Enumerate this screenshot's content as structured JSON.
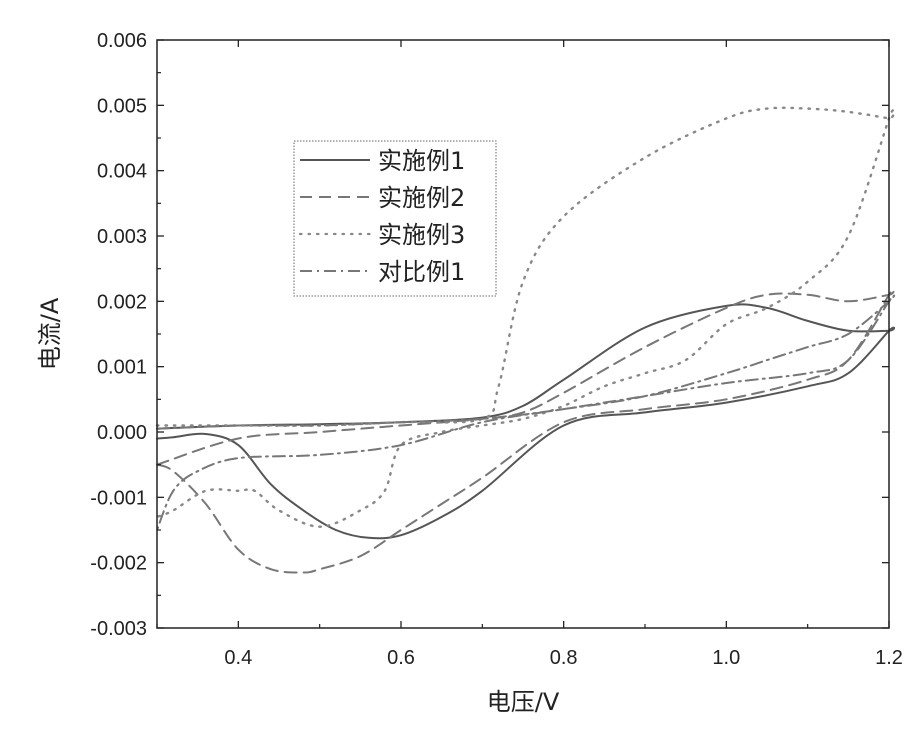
{
  "chart_data": {
    "type": "line",
    "title": "",
    "xlabel": "电压/V",
    "ylabel": "电流/A",
    "xlim": [
      0.3,
      1.2
    ],
    "ylim": [
      -0.003,
      0.006
    ],
    "x_ticks": [
      0.4,
      0.6,
      0.8,
      1.0,
      1.2
    ],
    "x_tick_labels": [
      "0.4",
      "0.6",
      "0.8",
      "1.0",
      "1.2"
    ],
    "y_ticks": [
      -0.003,
      -0.002,
      -0.001,
      0.0,
      0.001,
      0.002,
      0.003,
      0.004,
      0.005,
      0.006
    ],
    "y_tick_labels": [
      "-0.003",
      "-0.002",
      "-0.001",
      "0.000",
      "0.001",
      "0.002",
      "0.003",
      "0.004",
      "0.005",
      "0.006"
    ],
    "grid": false,
    "legend_position": "upper-left",
    "series": [
      {
        "name": "实施例1",
        "style": "solid",
        "color": "#555555",
        "x": [
          0.3,
          0.4,
          0.5,
          0.6,
          0.7,
          0.75,
          0.8,
          0.9,
          1.0,
          1.05,
          1.1,
          1.15,
          1.2,
          1.2,
          1.15,
          1.1,
          1.0,
          0.9,
          0.8,
          0.7,
          0.65,
          0.6,
          0.56,
          0.52,
          0.48,
          0.44,
          0.4,
          0.36,
          0.32,
          0.3
        ],
        "y": [
          5e-05,
          0.0001,
          0.00012,
          0.00015,
          0.00022,
          0.0004,
          0.0008,
          0.0016,
          0.00193,
          0.0019,
          0.0017,
          0.00155,
          0.00155,
          0.00155,
          0.0009,
          0.0007,
          0.00045,
          0.0003,
          0.0001,
          -0.0009,
          -0.0013,
          -0.00158,
          -0.00162,
          -0.0015,
          -0.0012,
          -0.0008,
          -0.0002,
          -3e-05,
          -8e-05,
          -0.0001
        ]
      },
      {
        "name": "实施例2",
        "style": "dashed",
        "color": "#777777",
        "x": [
          0.3,
          0.4,
          0.5,
          0.6,
          0.7,
          0.75,
          0.8,
          0.9,
          1.0,
          1.05,
          1.1,
          1.15,
          1.2,
          1.2,
          1.15,
          1.1,
          1.0,
          0.9,
          0.8,
          0.7,
          0.65,
          0.6,
          0.55,
          0.5,
          0.48,
          0.44,
          0.4,
          0.36,
          0.32,
          0.3
        ],
        "y": [
          -0.0005,
          -0.0001,
          0.0,
          0.0001,
          0.0002,
          0.0003,
          0.0006,
          0.0013,
          0.0019,
          0.0021,
          0.0021,
          0.002,
          0.0021,
          0.0021,
          0.0011,
          0.0008,
          0.0005,
          0.00035,
          0.00015,
          -0.0007,
          -0.0011,
          -0.0015,
          -0.0019,
          -0.0021,
          -0.00215,
          -0.0021,
          -0.0018,
          -0.0011,
          -0.0006,
          -0.0005
        ]
      },
      {
        "name": "实施例3",
        "style": "dotted",
        "color": "#888888",
        "x": [
          0.3,
          0.4,
          0.5,
          0.6,
          0.7,
          0.72,
          0.75,
          0.8,
          0.9,
          1.0,
          1.05,
          1.1,
          1.15,
          1.2,
          1.2,
          1.15,
          1.1,
          1.05,
          1.0,
          0.95,
          0.9,
          0.85,
          0.8,
          0.75,
          0.7,
          0.65,
          0.6,
          0.58,
          0.55,
          0.5,
          0.45,
          0.42,
          0.4,
          0.36,
          0.32,
          0.3
        ],
        "y": [
          0.0001,
          0.0001,
          0.0001,
          0.00015,
          0.0002,
          0.0007,
          0.0023,
          0.0033,
          0.0042,
          0.0048,
          0.00495,
          0.00495,
          0.0049,
          0.0048,
          0.0048,
          0.003,
          0.0023,
          0.0019,
          0.00165,
          0.0011,
          0.0009,
          0.0007,
          0.0004,
          0.0002,
          0.0001,
          0.0,
          -0.0002,
          -0.0009,
          -0.0012,
          -0.00145,
          -0.0012,
          -0.0009,
          -0.0009,
          -0.0009,
          -0.0012,
          -0.0013
        ]
      },
      {
        "name": "对比例1",
        "style": "dash-dot",
        "color": "#777777",
        "x": [
          0.3,
          0.4,
          0.5,
          0.6,
          0.7,
          0.8,
          0.9,
          1.0,
          1.05,
          1.1,
          1.15,
          1.2,
          1.2,
          1.15,
          1.1,
          1.0,
          0.9,
          0.8,
          0.7,
          0.6,
          0.5,
          0.4,
          0.35,
          0.32,
          0.3
        ],
        "y": [
          5e-05,
          0.0001,
          0.0001,
          0.00015,
          0.0002,
          0.00035,
          0.00055,
          0.0009,
          0.0011,
          0.0013,
          0.0015,
          0.002,
          0.002,
          0.0011,
          0.0009,
          0.00075,
          0.00055,
          0.00035,
          0.00015,
          -0.0002,
          -0.00035,
          -0.0004,
          -0.0006,
          -0.0009,
          -0.0015
        ]
      }
    ]
  }
}
